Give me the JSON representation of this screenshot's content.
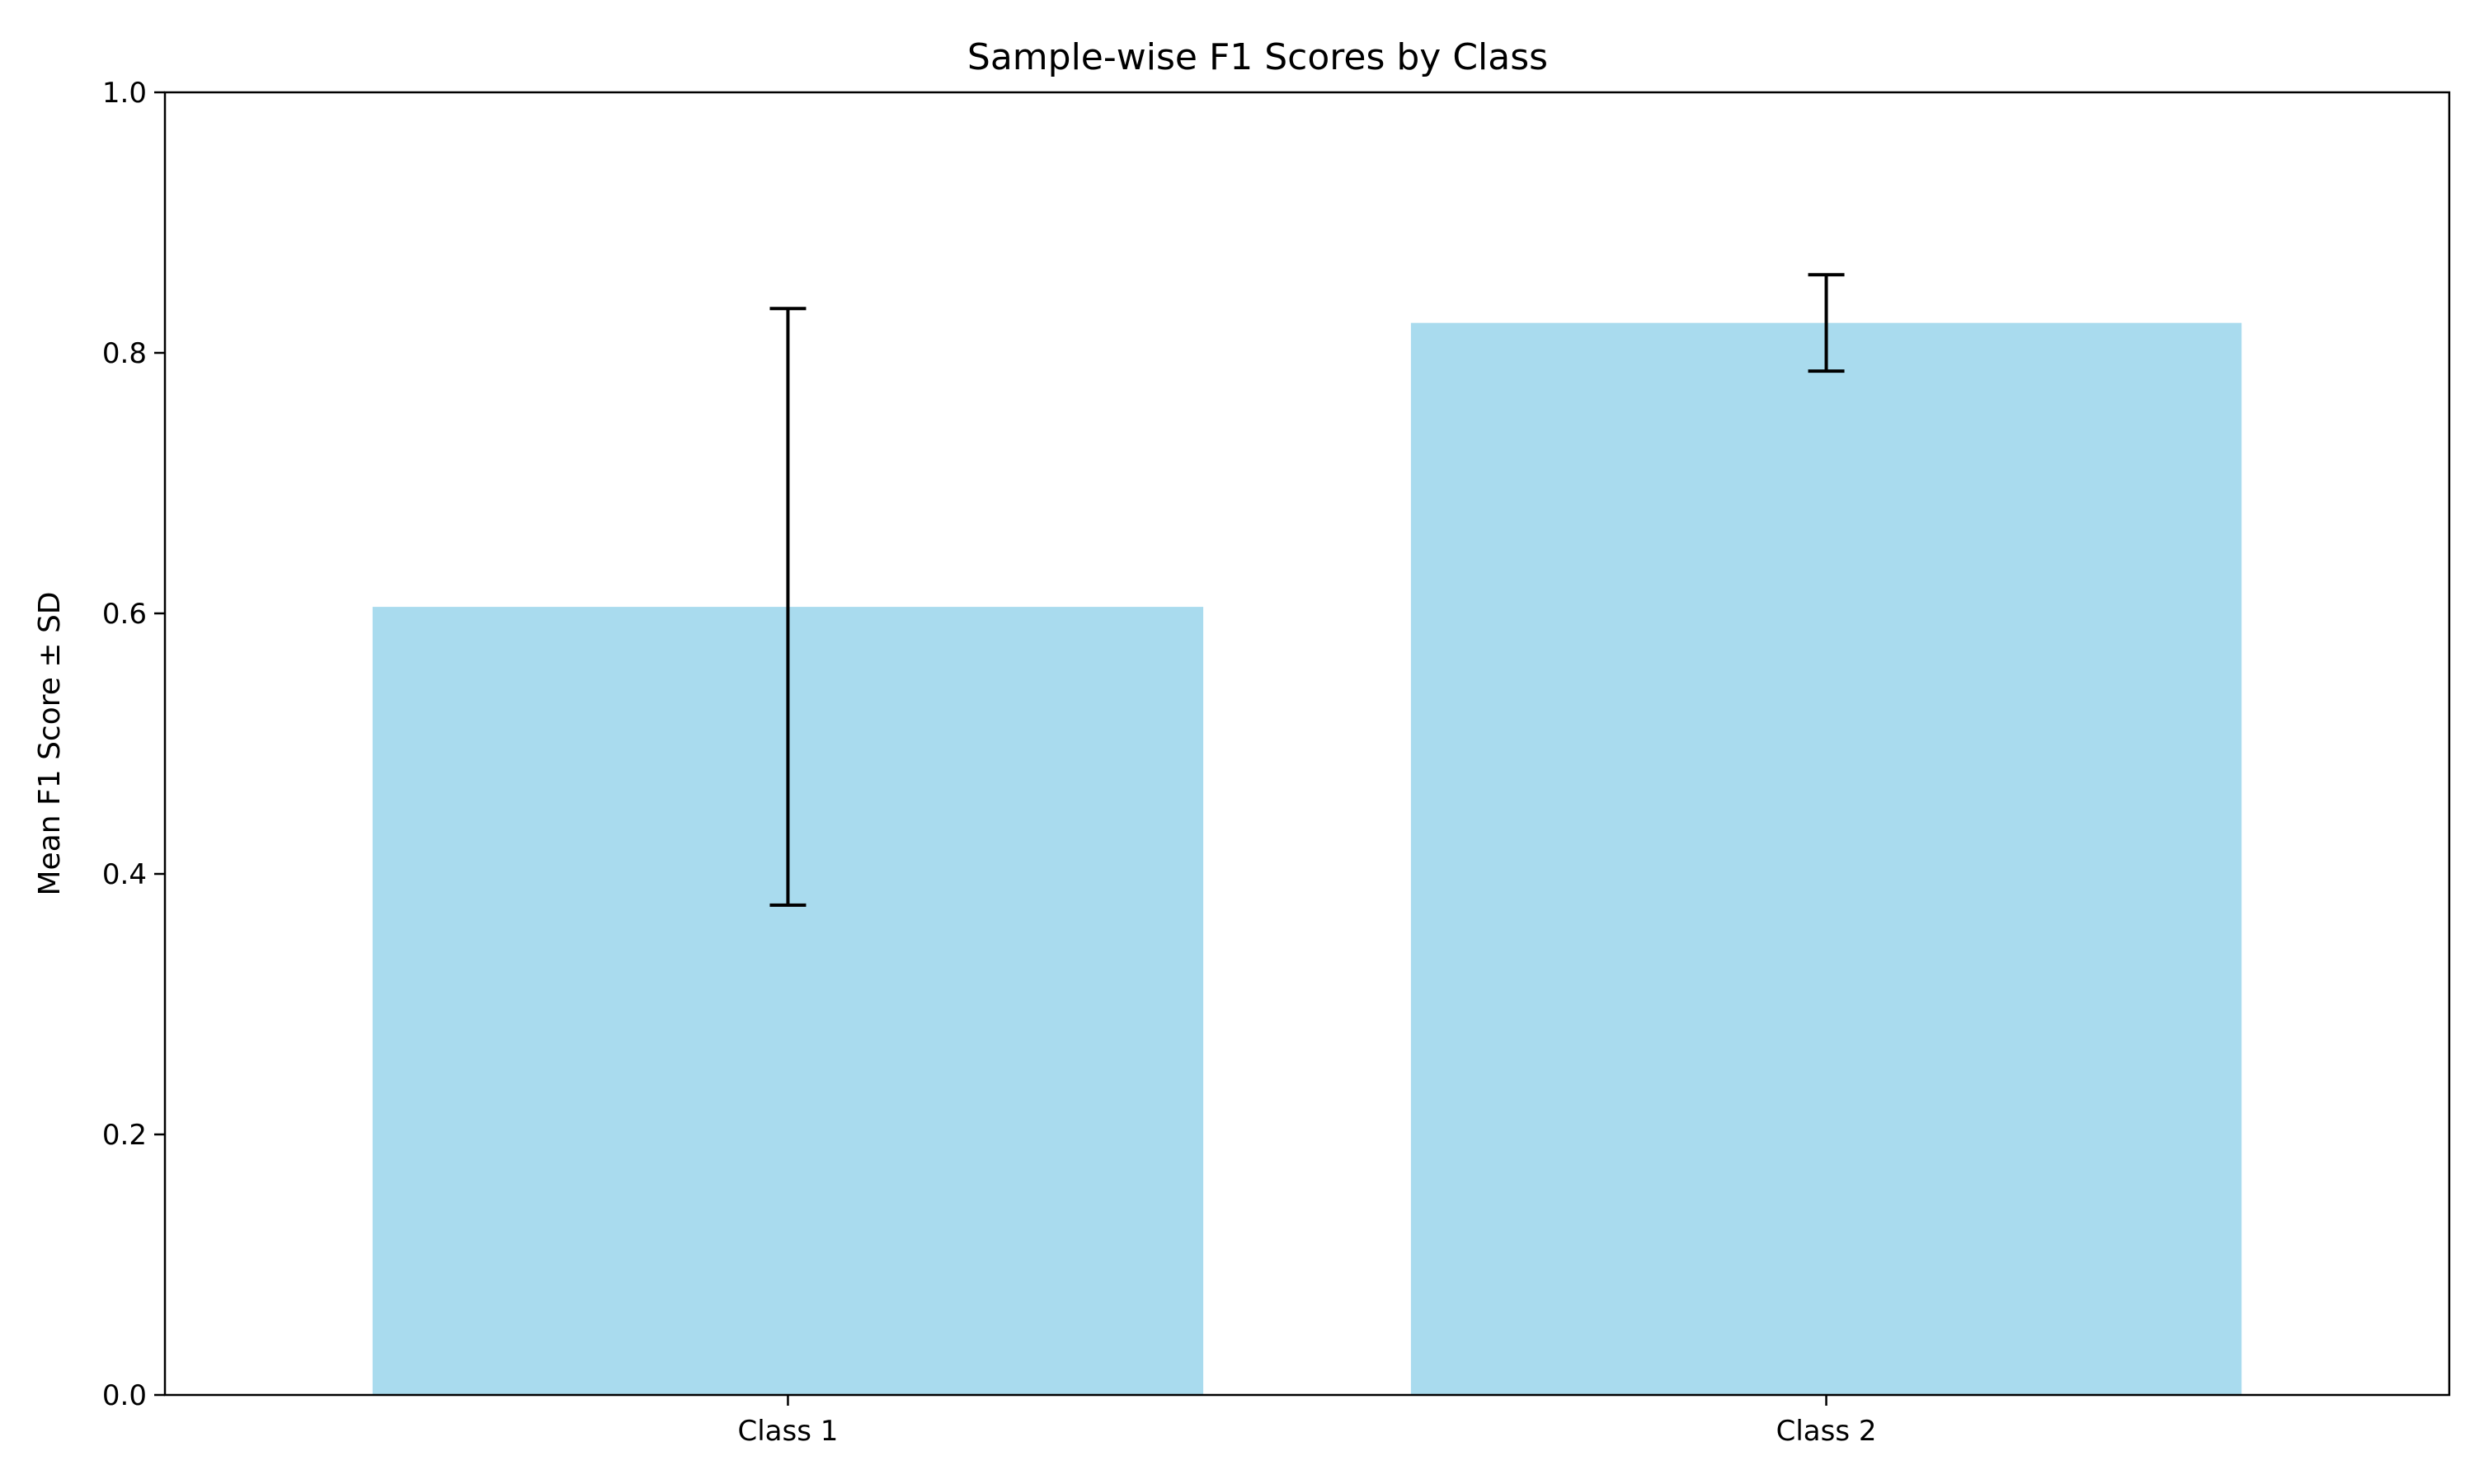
{
  "chart_data": {
    "type": "bar",
    "title": "Sample-wise F1 Scores by Class",
    "xlabel": "",
    "ylabel": "Mean F1 Score ± SD",
    "categories": [
      "Class 1",
      "Class 2"
    ],
    "values": [
      0.605,
      0.823
    ],
    "error_sd": [
      0.229,
      0.037
    ],
    "ylim": [
      0,
      1
    ],
    "yticks": [
      0.0,
      0.2,
      0.4,
      0.6,
      0.8,
      1.0
    ],
    "ytick_labels": [
      "0.0",
      "0.2",
      "0.4",
      "0.6",
      "0.8",
      "1.0"
    ],
    "grid": false,
    "legend": "none",
    "colors": {
      "bar": "#a9dbee",
      "error_bar": "#000000",
      "axes": "#000000"
    }
  }
}
